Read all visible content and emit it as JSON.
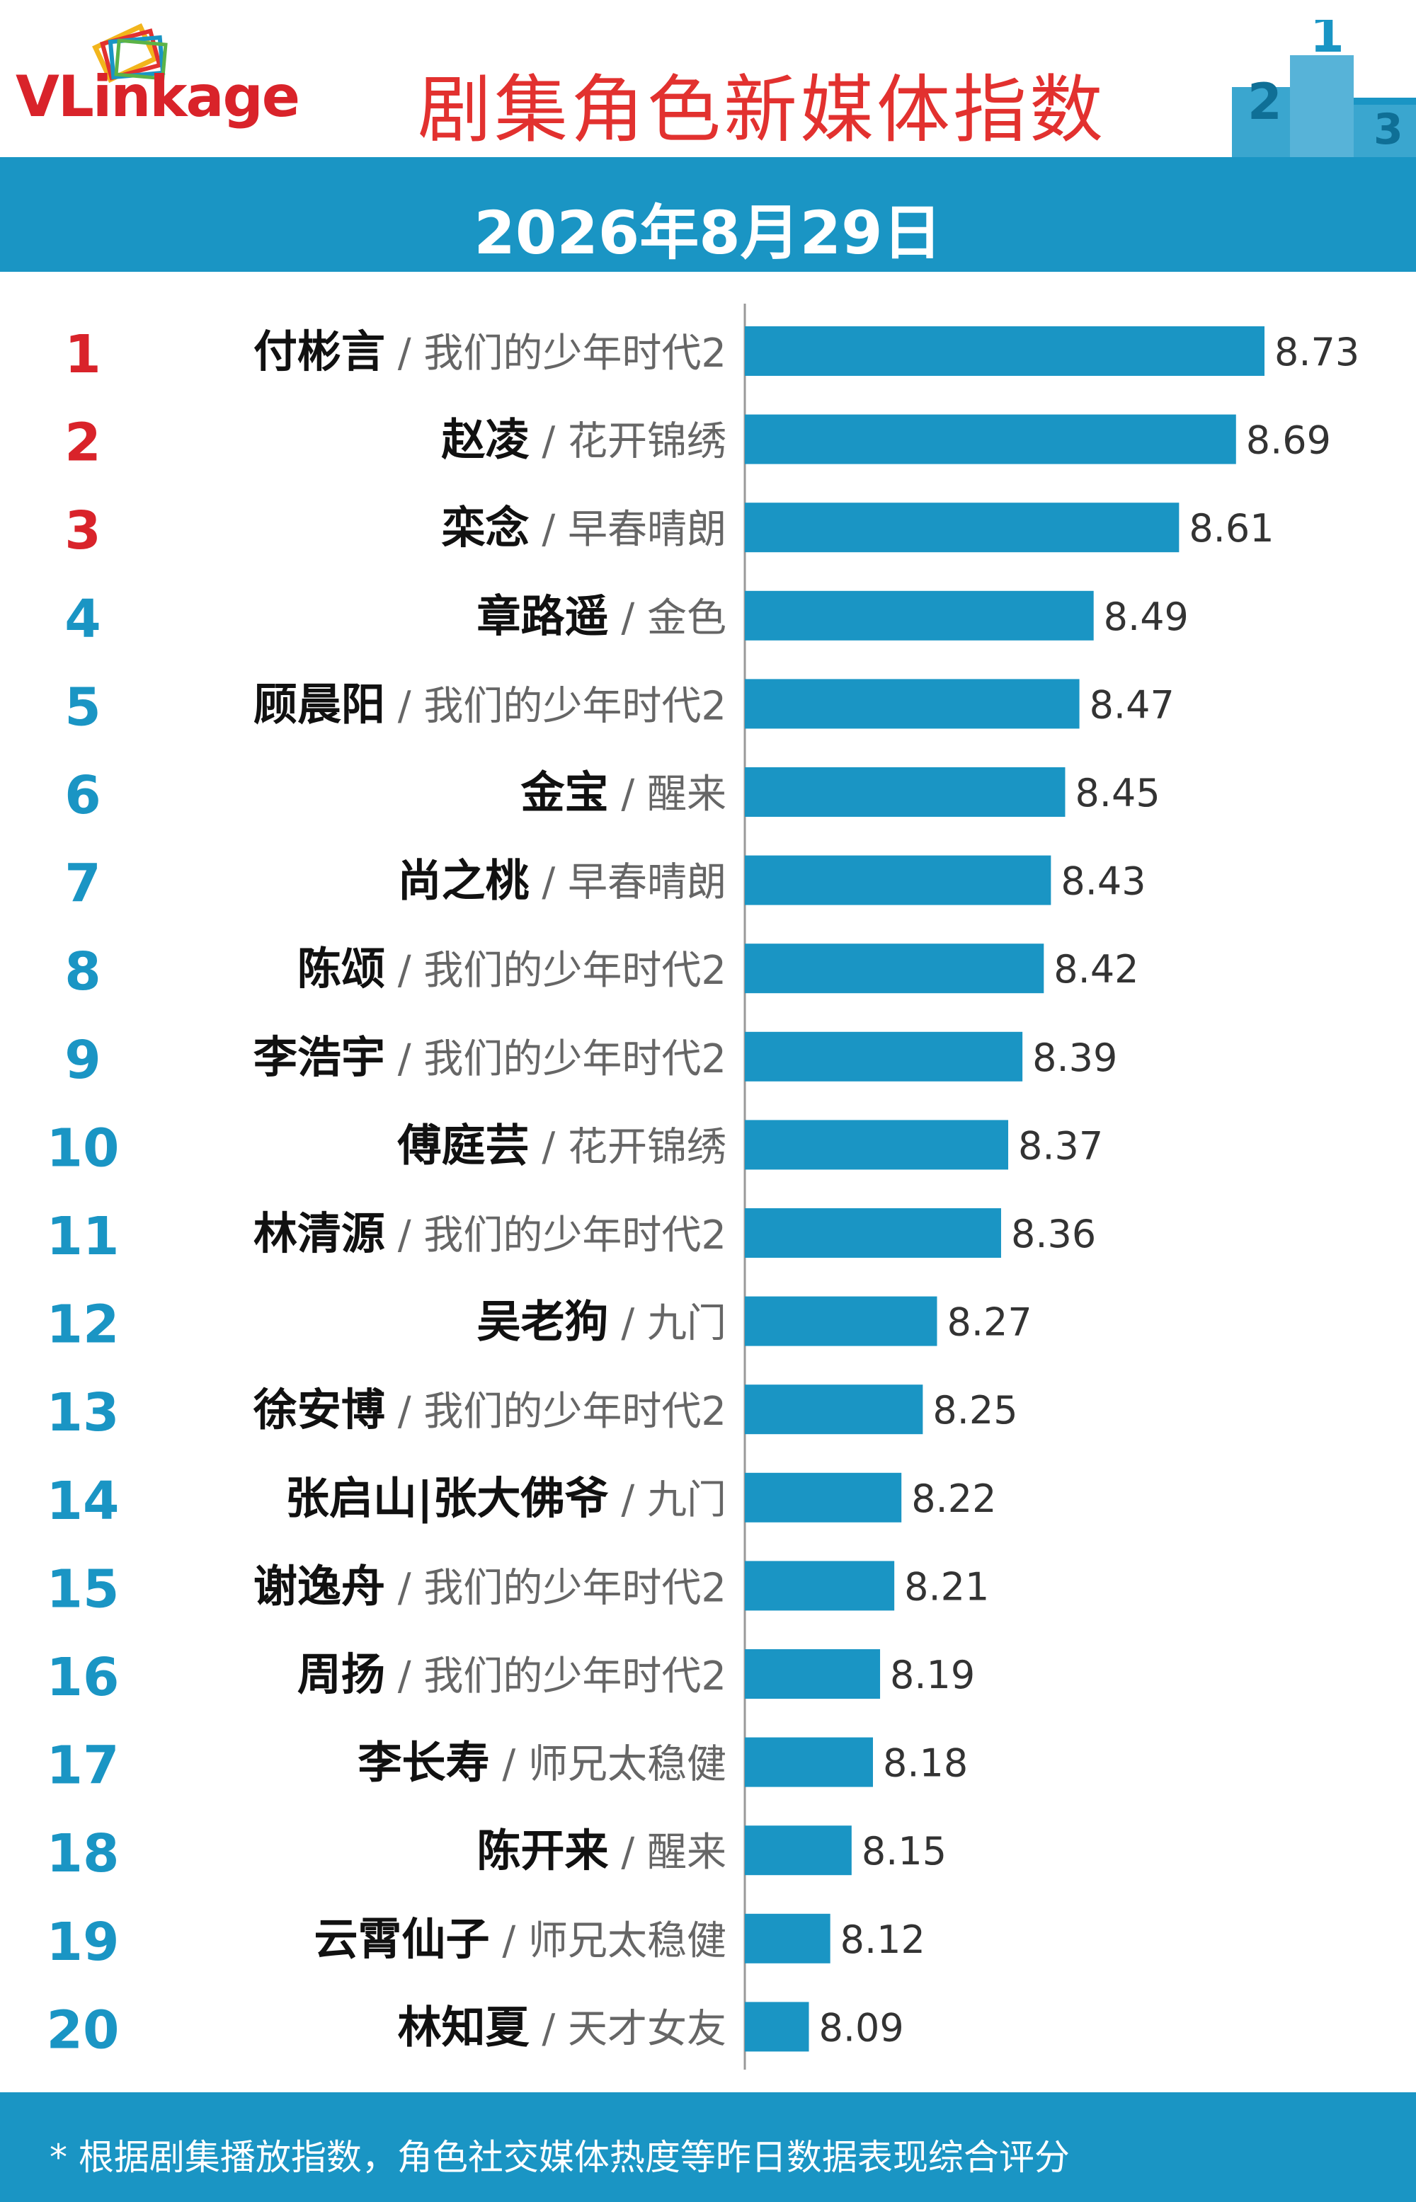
{
  "header": {
    "logo_text": "VLinkage",
    "title": "剧集角色新媒体指数"
  },
  "date": "2026年8月29日",
  "footer": {
    "note": "* 根据剧集播放指数，角色社交媒体热度等昨日数据表现综合评分"
  },
  "colors": {
    "bar": "#1a95c4",
    "rank_top3": "#d9232a",
    "rank_other": "#1a95c4",
    "name": "#111111",
    "drama": "#666666"
  },
  "chart_data": {
    "type": "bar",
    "orientation": "horizontal",
    "categories": [
      "付彬言",
      "赵凌",
      "栾念",
      "章路遥",
      "顾晨阳",
      "金宝",
      "尚之桃",
      "陈颂",
      "李浩宇",
      "傅庭芸",
      "林清源",
      "吴老狗",
      "徐安博",
      "张启山|张大佛爷",
      "谢逸舟",
      "周扬",
      "李长寿",
      "陈开来",
      "云霄仙子",
      "林知夏"
    ],
    "dramas": [
      "我们的少年时代2",
      "花开锦绣",
      "早春晴朗",
      "金色",
      "我们的少年时代2",
      "醒来",
      "早春晴朗",
      "我们的少年时代2",
      "我们的少年时代2",
      "花开锦绣",
      "我们的少年时代2",
      "九门",
      "我们的少年时代2",
      "九门",
      "我们的少年时代2",
      "我们的少年时代2",
      "师兄太稳健",
      "醒来",
      "师兄太稳健",
      "天才女友"
    ],
    "ranks": [
      "1",
      "2",
      "3",
      "4",
      "5",
      "6",
      "7",
      "8",
      "9",
      "10",
      "11",
      "12",
      "13",
      "14",
      "15",
      "16",
      "17",
      "18",
      "19",
      "20"
    ],
    "values": [
      8.73,
      8.69,
      8.61,
      8.49,
      8.47,
      8.45,
      8.43,
      8.42,
      8.39,
      8.37,
      8.36,
      8.27,
      8.25,
      8.22,
      8.21,
      8.19,
      8.18,
      8.15,
      8.12,
      8.09
    ],
    "value_labels": [
      "8.73",
      "8.69",
      "8.61",
      "8.49",
      "8.47",
      "8.45",
      "8.43",
      "8.42",
      "8.39",
      "8.37",
      "8.36",
      "8.27",
      "8.25",
      "8.22",
      "8.21",
      "8.19",
      "8.18",
      "8.15",
      "8.12",
      "8.09"
    ],
    "xlim": [
      8.0,
      8.73
    ]
  }
}
